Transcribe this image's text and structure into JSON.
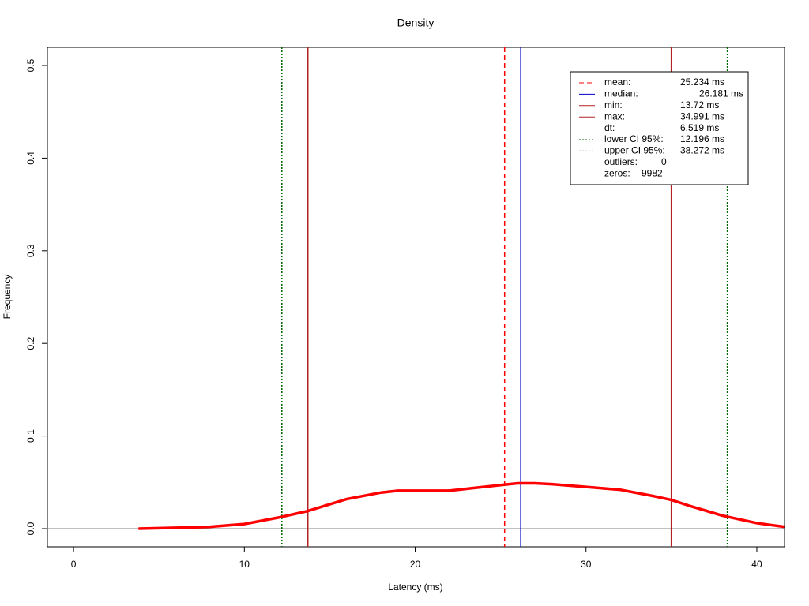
{
  "chart_data": {
    "type": "line",
    "title": "Density",
    "x_label": "Latency (ms)",
    "y_label": "Frequency",
    "xlim": [
      -1.53,
      41.62
    ],
    "ylim": [
      -0.0196,
      0.5196
    ],
    "xticks": [
      0,
      10,
      20,
      30,
      40
    ],
    "yticks": [
      {
        "value": 0,
        "label": "0.0"
      },
      {
        "value": 0.1,
        "label": "0.1"
      },
      {
        "value": 0.2,
        "label": "0.2"
      },
      {
        "value": 0.3,
        "label": "0.3"
      },
      {
        "value": 0.4,
        "label": "0.4"
      },
      {
        "value": 0.5,
        "label": "0.5"
      }
    ],
    "series": [
      {
        "color": "#ff0000",
        "x": [
          3.8,
          6,
          8,
          10,
          12,
          13.7,
          16,
          18,
          19,
          20,
          22,
          24,
          25,
          26,
          27,
          28,
          30,
          32,
          34,
          35,
          36,
          38,
          40,
          41.6
        ],
        "values": [
          0,
          0.001,
          0.002,
          0.005,
          0.012,
          0.019,
          0.032,
          0.039,
          0.041,
          0.041,
          0.041,
          0.045,
          0.047,
          0.049,
          0.049,
          0.048,
          0.045,
          0.042,
          0.035,
          0.031,
          0.025,
          0.014,
          0.006,
          0.002
        ]
      }
    ],
    "baseline_color": "#808080",
    "markers": {
      "names": [
        "mean:",
        "median:",
        "min:",
        "max:",
        "lower CI 95%:",
        "upper CI 95%:"
      ],
      "values": [
        25.234,
        26.181,
        13.72,
        34.991,
        12.196,
        38.272
      ],
      "value_labels": [
        "25.234 ms",
        "26.181 ms",
        "13.72 ms",
        "34.991 ms",
        "12.196 ms",
        "38.272 ms"
      ],
      "colors": [
        "#ff0000",
        "#0000cd",
        "#b22222",
        "#b22222",
        "#006400",
        "#006400"
      ],
      "dashes": [
        "6,4",
        "none",
        "none",
        "none",
        "2,2",
        "2,2"
      ]
    },
    "legend_extra": [
      {
        "label": "dt:",
        "value": "6.519 ms"
      },
      {
        "label": "outliers:",
        "value": "0"
      },
      {
        "label": "zeros:",
        "value": "9982"
      }
    ]
  }
}
